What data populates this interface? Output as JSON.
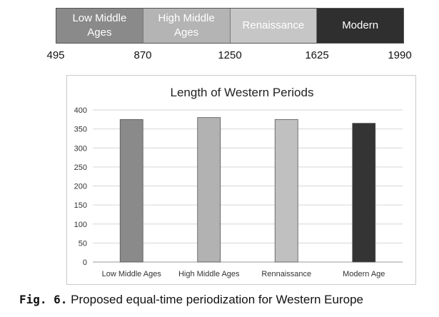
{
  "timeline": {
    "segments": [
      {
        "label": "Low Middle Ages",
        "color": "#8a8a8a",
        "text_color": "#ffffff"
      },
      {
        "label": "High Middle Ages",
        "color": "#b4b4b4",
        "text_color": "#ffffff"
      },
      {
        "label": "Renaissance",
        "color": "#c6c6c6",
        "text_color": "#ffffff"
      },
      {
        "label": "Modern",
        "color": "#2f2f2f",
        "text_color": "#ffffff"
      }
    ],
    "years": [
      "495",
      "870",
      "1250",
      "1625",
      "1990"
    ]
  },
  "chart_data": {
    "type": "bar",
    "title": "Length of Western Periods",
    "xlabel": "",
    "ylabel": "",
    "categories": [
      "Low Middle Ages",
      "High Middle Ages",
      "Rennaissance",
      "Modern Age"
    ],
    "values": [
      375,
      380,
      375,
      365
    ],
    "colors": [
      "#8a8a8a",
      "#b2b2b2",
      "#c0c0c0",
      "#343434"
    ],
    "ylim": [
      0,
      400
    ],
    "yticks": [
      0,
      50,
      100,
      150,
      200,
      250,
      300,
      350,
      400
    ],
    "grid": true,
    "legend": "none"
  },
  "caption": {
    "label": "Fig. 6.",
    "text": "Proposed equal-time periodization for Western Europe"
  }
}
